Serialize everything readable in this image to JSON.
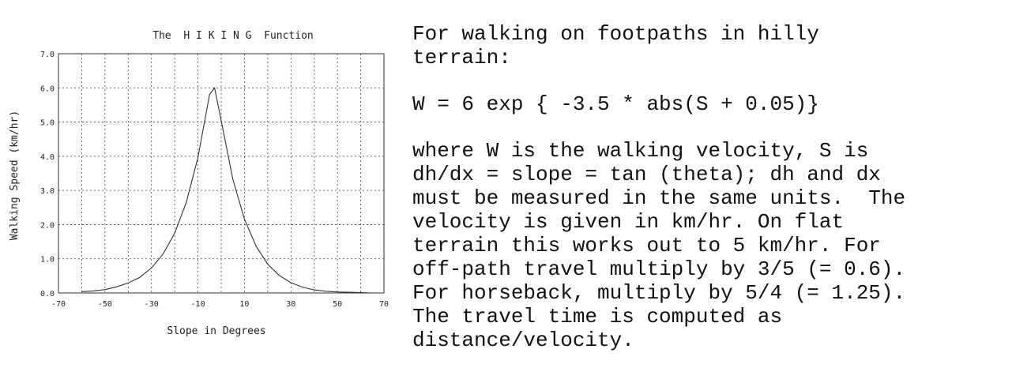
{
  "chart_data": {
    "type": "line",
    "title": "The  H I K I N G  Function",
    "xlabel": "Slope in Degrees",
    "ylabel": "Walking Speed (km/hr)",
    "xlim": [
      -70,
      70
    ],
    "ylim": [
      0,
      7
    ],
    "x_ticks": [
      "-70",
      "-50",
      "-30",
      "-10",
      "10",
      "30",
      "50",
      "70"
    ],
    "y_ticks": [
      "0.0",
      "1.0",
      "2.0",
      "3.0",
      "4.0",
      "5.0",
      "6.0",
      "7.0"
    ],
    "grid": true,
    "series": [
      {
        "x": [
          -60,
          -55,
          -50,
          -45,
          -40,
          -35,
          -30,
          -25,
          -20,
          -15,
          -10,
          -5,
          -2.86,
          0,
          5,
          10,
          15,
          20,
          25,
          30,
          35,
          40,
          45,
          50,
          55,
          60,
          65
        ],
        "y": [
          0.04,
          0.06,
          0.1,
          0.18,
          0.29,
          0.46,
          0.73,
          1.14,
          1.75,
          2.66,
          3.97,
          5.81,
          6.0,
          5.04,
          3.33,
          2.16,
          1.37,
          0.84,
          0.51,
          0.3,
          0.17,
          0.09,
          0.05,
          0.03,
          0.02,
          0.01,
          0.0
        ]
      }
    ]
  },
  "description": {
    "intro": [
      "For walking on footpaths in hilly",
      "terrain:"
    ],
    "formula": "W = 6 exp { -3.5 * abs(S + 0.05)}",
    "body": [
      "where W is the walking velocity, S is",
      "dh/dx = slope = tan (theta); dh and dx",
      "must be measured in the same units.  The",
      "velocity is given in km/hr. On flat",
      "terrain this works out to 5 km/hr. For",
      "off-path travel multiply by 3/5 (= 0.6).",
      "For horseback, multiply by 5/4 (= 1.25).",
      "The travel time is computed as",
      "distance/velocity."
    ]
  }
}
